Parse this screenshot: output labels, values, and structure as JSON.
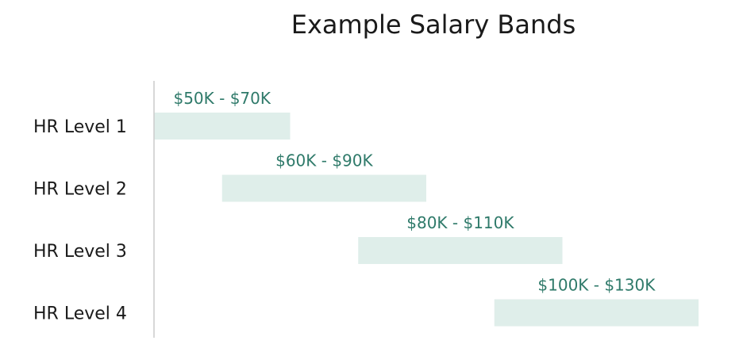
{
  "chart_data": {
    "type": "bar",
    "orientation": "horizontal",
    "title": "Example Salary Bands",
    "categories": [
      "HR Level 1",
      "HR Level 2",
      "HR Level 3",
      "HR Level 4"
    ],
    "ranges": [
      [
        50000,
        70000
      ],
      [
        60000,
        90000
      ],
      [
        80000,
        110000
      ],
      [
        100000,
        130000
      ]
    ],
    "data_labels": [
      "$50K - $70K",
      "$60K - $90K",
      "$80K - $110K",
      "$100K - $130K"
    ],
    "xlim": [
      50000,
      130000
    ],
    "xlabel": "",
    "ylabel": "",
    "grid": false,
    "axes_visible": {
      "x": false,
      "y": true
    }
  },
  "colors": {
    "bar_fill": "#dfeeea",
    "label_text": "#2f7a6a",
    "axis_line": "#cccccc",
    "text": "#1a1a1a"
  }
}
